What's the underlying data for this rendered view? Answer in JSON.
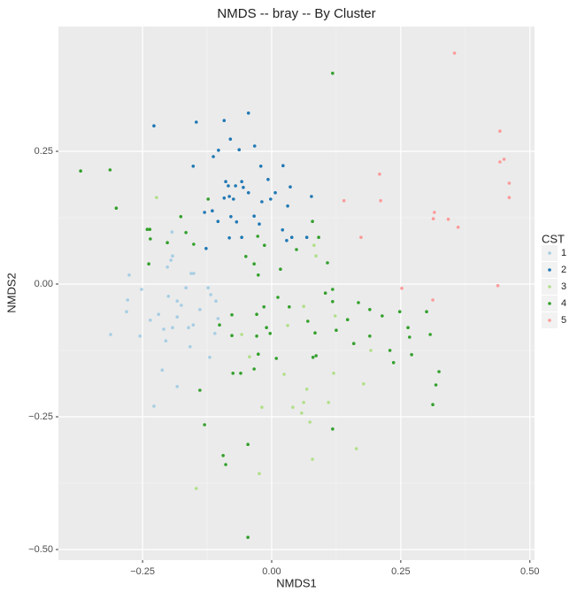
{
  "chart_data": {
    "type": "scatter",
    "title": "NMDS -- bray -- By Cluster",
    "x_label": "NMDS1",
    "y_label": "NMDS2",
    "legend_title": "CST",
    "legend_position": "right",
    "grid": true,
    "xlim": [
      -0.413,
      0.509
    ],
    "ylim": [
      -0.52,
      0.485
    ],
    "xticks": [
      {
        "value": -0.25,
        "label": "−0.25"
      },
      {
        "value": 0,
        "label": "0.00"
      },
      {
        "value": 0.25,
        "label": "0.25"
      },
      {
        "value": 0.5,
        "label": "0.50"
      }
    ],
    "yticks": [
      {
        "value": -0.5,
        "label": "−0.50"
      },
      {
        "value": -0.25,
        "label": "−0.25"
      },
      {
        "value": 0,
        "label": "0.00"
      },
      {
        "value": 0.25,
        "label": "0.25"
      }
    ],
    "series": [
      {
        "name": "1",
        "color": "#a6cee3",
        "x": [
          -0.193,
          -0.192,
          -0.195,
          -0.202,
          -0.156,
          -0.151,
          -0.276,
          -0.252,
          -0.279,
          -0.281,
          -0.312,
          -0.255,
          -0.219,
          -0.235,
          -0.2,
          -0.183,
          -0.175,
          -0.183,
          -0.209,
          -0.192,
          -0.161,
          -0.152,
          -0.123,
          -0.118,
          -0.108,
          -0.104,
          -0.11,
          -0.12,
          -0.158,
          -0.183,
          -0.228,
          -0.212,
          -0.166,
          -0.205,
          -0.139
        ],
        "values": [
          0.098,
          0.053,
          0.045,
          0.032,
          0.02,
          0.02,
          0.017,
          -0.01,
          -0.03,
          -0.052,
          -0.095,
          -0.098,
          -0.057,
          -0.068,
          -0.023,
          -0.032,
          -0.04,
          -0.062,
          -0.085,
          -0.082,
          -0.082,
          -0.077,
          -0.007,
          -0.02,
          -0.032,
          -0.065,
          -0.093,
          -0.138,
          -0.118,
          -0.193,
          -0.23,
          -0.162,
          -0.007,
          -0.107,
          -0.048
        ]
      },
      {
        "name": "2",
        "color": "#1f78b4",
        "x": [
          -0.228,
          -0.146,
          -0.092,
          -0.045,
          -0.08,
          -0.063,
          -0.152,
          -0.103,
          -0.113,
          -0.033,
          -0.021,
          0.022,
          -0.007,
          -0.089,
          -0.084,
          -0.07,
          -0.058,
          -0.055,
          -0.082,
          -0.074,
          -0.092,
          -0.115,
          -0.045,
          -0.034,
          0.007,
          -0.019,
          -0.002,
          0.077,
          0.036,
          0.031,
          -0.13,
          -0.079,
          -0.104,
          -0.068,
          -0.058,
          -0.082,
          -0.127,
          0.029,
          0.039,
          0.068,
          0.021,
          -0.024
        ],
        "values": [
          0.298,
          0.305,
          0.308,
          0.322,
          0.273,
          0.253,
          0.222,
          0.252,
          0.24,
          0.26,
          0.222,
          0.223,
          0.197,
          0.193,
          0.185,
          0.185,
          0.193,
          0.182,
          0.165,
          0.16,
          0.162,
          0.138,
          0.172,
          0.128,
          0.172,
          0.155,
          0.16,
          0.165,
          0.183,
          0.147,
          0.135,
          0.127,
          0.118,
          0.117,
          0.088,
          0.087,
          0.067,
          0.082,
          0.088,
          0.088,
          0.102,
          0.113
        ]
      },
      {
        "name": "3",
        "color": "#b2df8a",
        "x": [
          -0.223,
          0.082,
          0.086,
          0.062,
          0.123,
          0.031,
          0.024,
          -0.019,
          0.041,
          0.062,
          0.068,
          0.058,
          0.074,
          0.11,
          0.164,
          0.079,
          -0.146,
          -0.024,
          -0.058,
          -0.043,
          0.12,
          0.178,
          0.192
        ],
        "values": [
          0.163,
          0.073,
          0.053,
          -0.042,
          -0.06,
          -0.078,
          -0.17,
          -0.232,
          -0.232,
          -0.223,
          -0.198,
          -0.243,
          -0.26,
          -0.223,
          -0.31,
          -0.33,
          -0.385,
          -0.357,
          -0.095,
          -0.137,
          -0.168,
          -0.188,
          -0.125
        ]
      },
      {
        "name": "4",
        "color": "#33a02c",
        "x": [
          -0.37,
          -0.313,
          -0.301,
          0.118,
          -0.241,
          -0.236,
          -0.235,
          -0.202,
          -0.238,
          -0.166,
          -0.151,
          -0.176,
          -0.123,
          -0.027,
          -0.014,
          -0.034,
          -0.05,
          -0.026,
          0.017,
          0.048,
          0.079,
          0.091,
          0.108,
          0.104,
          0.118,
          0.168,
          0.118,
          0.012,
          0.034,
          0.07,
          0.084,
          0.08,
          0.086,
          0.125,
          0.147,
          0.19,
          0.214,
          0.248,
          0.264,
          0.3,
          0.267,
          0.271,
          0.229,
          0.236,
          0.307,
          0.318,
          0.324,
          0.312,
          0.118,
          -0.077,
          -0.077,
          -0.075,
          -0.101,
          -0.139,
          -0.13,
          -0.029,
          -0.015,
          -0.01,
          -0.029,
          -0.026,
          -0.003,
          0.009,
          -0.034,
          -0.06,
          -0.046,
          -0.094,
          -0.089,
          -0.046,
          0.19,
          0.159
        ],
        "values": [
          0.213,
          0.215,
          0.143,
          0.397,
          0.103,
          0.103,
          0.085,
          0.078,
          0.038,
          0.097,
          0.075,
          0.127,
          0.16,
          0.09,
          0.073,
          0.038,
          0.052,
          0.017,
          0.028,
          0.065,
          0.118,
          0.088,
          0.04,
          -0.017,
          -0.033,
          -0.035,
          -0.01,
          -0.025,
          -0.043,
          -0.07,
          -0.092,
          -0.138,
          -0.135,
          -0.087,
          -0.067,
          -0.048,
          -0.06,
          -0.052,
          -0.082,
          -0.052,
          -0.1,
          -0.133,
          -0.125,
          -0.148,
          -0.095,
          -0.19,
          -0.165,
          -0.227,
          -0.273,
          -0.058,
          -0.097,
          -0.168,
          -0.077,
          -0.2,
          -0.265,
          -0.057,
          -0.043,
          -0.082,
          -0.098,
          -0.132,
          -0.093,
          -0.14,
          -0.16,
          -0.168,
          -0.302,
          -0.323,
          -0.34,
          -0.477,
          -0.098,
          -0.112
        ]
      },
      {
        "name": "5",
        "color": "#fb9a99",
        "x": [
          0.354,
          0.442,
          0.442,
          0.45,
          0.46,
          0.46,
          0.209,
          0.211,
          0.14,
          0.315,
          0.313,
          0.342,
          0.361,
          0.173,
          0.252,
          0.438,
          0.312
        ],
        "values": [
          0.435,
          0.288,
          0.23,
          0.235,
          0.19,
          0.163,
          0.207,
          0.157,
          0.157,
          0.135,
          0.123,
          0.122,
          0.107,
          0.088,
          -0.008,
          -0.003,
          -0.03
        ]
      }
    ]
  }
}
